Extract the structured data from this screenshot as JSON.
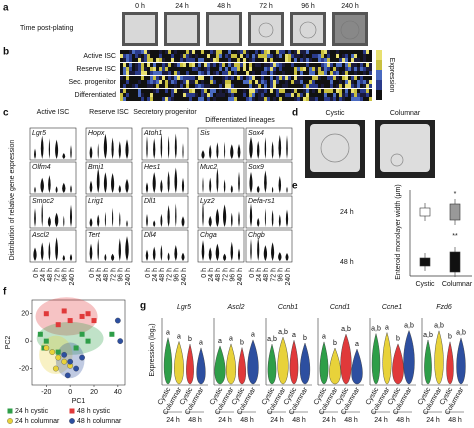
{
  "panel_a": {
    "label": "a",
    "row_title": "Time post-plating",
    "times": [
      "0 h",
      "24 h",
      "48 h",
      "72 h",
      "96 h",
      "240 h"
    ]
  },
  "panel_b": {
    "label": "b",
    "rows": [
      "Active ISC",
      "Reserve ISC",
      "Sec. progenitor",
      "Differentiated"
    ],
    "legend_title": "Expression"
  },
  "panel_c": {
    "label": "c",
    "y_label": "Distribution of relative gene expression",
    "x_labels": [
      "0 h",
      "24 h",
      "48 h",
      "72 h",
      "96 h",
      "240 h"
    ],
    "groups": [
      {
        "title": "Active ISC",
        "genes": [
          "Lgr5",
          "Olfm4",
          "Smoc2",
          "Ascl2"
        ]
      },
      {
        "title": "Reserve ISC",
        "genes": [
          "Hopx",
          "Bmi1",
          "Lrig1",
          "Tert"
        ]
      },
      {
        "title": "Secretory progenitor",
        "genes": [
          "Atoh1",
          "Hes1",
          "Dll1",
          "Dll4"
        ]
      },
      {
        "title": "Differentiated lineages",
        "genes": [
          "Sis",
          "Muc2",
          "Lyz2",
          "Chga",
          "Sox4",
          "Sox9",
          "Defa-rs1",
          "Chgb"
        ]
      }
    ]
  },
  "panel_d": {
    "label": "d",
    "titles": [
      "Cystic",
      "Columnar"
    ]
  },
  "panel_e": {
    "label": "e",
    "y_label": "Enteroid monolayer width (μm)",
    "rows": [
      "24 h",
      "48 h"
    ],
    "x_labels": [
      "Cystic",
      "Columnar"
    ],
    "marks": [
      "*",
      "**"
    ]
  },
  "chart_data": {
    "type": "scatter",
    "label": "f",
    "x_label": "PC1",
    "y_label": "PC2",
    "xlim": [
      -32,
      46
    ],
    "ylim": [
      -32,
      30
    ],
    "xticks": [
      -20,
      0,
      20,
      40
    ],
    "yticks": [
      20,
      0,
      -20
    ],
    "series": [
      {
        "name": "24 h cystic",
        "color": "#2e9e48",
        "marker": "square",
        "x": [
          -25,
          -20,
          -22,
          -10,
          5,
          10,
          15,
          35
        ],
        "values": [
          5,
          0,
          -5,
          -8,
          -5,
          5,
          0,
          5
        ]
      },
      {
        "name": "48 h cystic",
        "color": "#e0393a",
        "marker": "square",
        "x": [
          -20,
          -5,
          0,
          10,
          15,
          -10,
          20
        ],
        "values": [
          20,
          22,
          15,
          18,
          20,
          12,
          15
        ]
      },
      {
        "name": "24 h columnar",
        "color": "#e8d23a",
        "marker": "circle",
        "x": [
          -15,
          -10,
          -5,
          -20,
          0,
          -12
        ],
        "values": [
          -8,
          -12,
          -15,
          -5,
          -18,
          -20
        ]
      },
      {
        "name": "48 h columnar",
        "color": "#2d4fa0",
        "marker": "circle",
        "x": [
          -5,
          0,
          5,
          10,
          -2,
          40,
          42
        ],
        "values": [
          -10,
          -15,
          -20,
          -12,
          -25,
          15,
          0
        ]
      }
    ]
  },
  "panel_g": {
    "label": "g",
    "y_label": "Expression (log₂)",
    "x_labels": [
      "Cystic",
      "Columnar"
    ],
    "times": [
      "24 h",
      "48 h"
    ],
    "genes": [
      {
        "name": "Lgr5",
        "letters": [
          "a",
          "a",
          "b",
          "a"
        ]
      },
      {
        "name": "Ascl2",
        "letters": [
          "a",
          "a",
          "b",
          "a"
        ]
      },
      {
        "name": "Ccnb1",
        "letters": [
          "a,b",
          "a,b",
          "a",
          "b"
        ]
      },
      {
        "name": "Ccnd1",
        "letters": [
          "a",
          "b",
          "a,b",
          "a"
        ]
      },
      {
        "name": "Ccne1",
        "letters": [
          "a,b",
          "a",
          "b",
          "a,b"
        ]
      },
      {
        "name": "Fzd6",
        "letters": [
          "a,b",
          "a,b",
          "b",
          "a,b"
        ]
      }
    ]
  }
}
